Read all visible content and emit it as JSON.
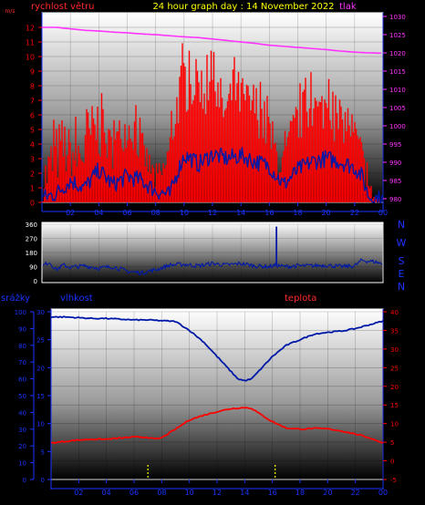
{
  "header": {
    "left_label": "rychlost větru",
    "left_unit": "m/s",
    "title": "24 hour graph day : 14 November 2022",
    "right_label": "tlak"
  },
  "colors": {
    "wind": "#ff0000",
    "gust": "#0018a8",
    "pressure": "#ff33ff",
    "direction": "#0018a8",
    "humidity": "#0018a8",
    "temperature": "#ff0000",
    "rain_label": "#1a33ff",
    "temp_label": "#ff0000",
    "tick_blue": "#1a33ff",
    "title": "#ffff00"
  },
  "chart_data": [
    {
      "type": "line",
      "panel": "wind-pressure",
      "x_ticks": [
        "02",
        "04",
        "06",
        "08",
        "10",
        "12",
        "14",
        "16",
        "18",
        "20",
        "22",
        "00"
      ],
      "xlim": [
        0,
        24
      ],
      "y_left": {
        "label": "rychlost větru",
        "ticks": [
          "0",
          "1",
          "2",
          "3",
          "4",
          "5",
          "6",
          "7",
          "8",
          "9",
          "10",
          "11",
          "12"
        ],
        "ylim": [
          0,
          13
        ]
      },
      "y_right": {
        "label": "tlak",
        "ticks": [
          "980",
          "985",
          "990",
          "995",
          "1000",
          "1005",
          "1010",
          "1015",
          "1020",
          "1025",
          "1030"
        ],
        "ylim": [
          979,
          1031
        ]
      },
      "series": [
        {
          "name": "rychlost větru",
          "axis": "left",
          "style": "noisy-bars",
          "x": [
            0,
            0.5,
            1,
            1.5,
            2,
            2.5,
            3,
            3.5,
            4,
            4.5,
            5,
            5.5,
            6,
            6.5,
            7,
            7.5,
            8,
            8.5,
            9,
            9.5,
            10,
            10.5,
            11,
            11.5,
            12,
            12.5,
            13,
            13.5,
            14,
            14.5,
            15,
            15.5,
            16,
            16.5,
            17,
            17.5,
            18,
            18.5,
            19,
            19.5,
            20,
            20.5,
            21,
            21.5,
            22,
            22.5,
            23,
            23.5,
            24
          ],
          "mean": [
            1.2,
            2,
            3,
            3.5,
            3.2,
            2.8,
            3.5,
            4.5,
            5,
            4,
            3.5,
            4.5,
            5,
            4.8,
            3.5,
            2.5,
            1.5,
            1.8,
            3.5,
            6.5,
            8.2,
            7.5,
            8.5,
            7,
            8.5,
            6.5,
            6,
            7.5,
            7,
            6.5,
            6.5,
            5.5,
            4.5,
            3,
            2.5,
            4,
            5.5,
            6,
            6.5,
            6,
            6.5,
            5.5,
            5,
            5.5,
            4.5,
            3,
            0.8,
            0.2,
            0.1
          ],
          "max": [
            3,
            5,
            6,
            7,
            5.5,
            6,
            8,
            7.5,
            8.5,
            6,
            5.5,
            6.5,
            7,
            7,
            5.5,
            4,
            3,
            3.5,
            5.5,
            9,
            11.5,
            10,
            10.5,
            10,
            10.5,
            9.5,
            8.5,
            10,
            9.5,
            9,
            9,
            8,
            7,
            5.5,
            4.5,
            6.5,
            8,
            8.5,
            9,
            8,
            9,
            7.5,
            7,
            7.5,
            6.5,
            5,
            2,
            0.5,
            0.3
          ]
        },
        {
          "name": "gust",
          "axis": "left",
          "x": [
            0,
            1,
            2,
            3,
            4,
            5,
            6,
            7,
            8,
            9,
            9.5,
            10,
            10.5,
            11,
            12,
            13,
            14,
            15,
            16,
            17,
            18,
            19,
            20,
            21,
            22,
            22.5,
            23,
            24
          ],
          "y": [
            0.3,
            0.6,
            1.5,
            1,
            2.2,
            1.2,
            1.8,
            1.5,
            0.8,
            0.5,
            2,
            3.2,
            3,
            2.6,
            3.3,
            3,
            3.2,
            2.8,
            2.5,
            1.2,
            2.2,
            2.8,
            3,
            2.8,
            2.4,
            1.8,
            0.4,
            0.2
          ]
        },
        {
          "name": "tlak",
          "axis": "right",
          "x": [
            0,
            1,
            2,
            3,
            4,
            5,
            6,
            7,
            8,
            9,
            10,
            11,
            12,
            13,
            14,
            15,
            16,
            17,
            18,
            19,
            20,
            21,
            22,
            23,
            24
          ],
          "y": [
            1027,
            1027,
            1026.6,
            1026.2,
            1026,
            1025.7,
            1025.5,
            1025.2,
            1025,
            1024.7,
            1024.4,
            1024.2,
            1023.8,
            1023.4,
            1023,
            1022.6,
            1022.1,
            1021.8,
            1021.5,
            1021.2,
            1020.9,
            1020.5,
            1020.2,
            1020,
            1019.9
          ]
        }
      ]
    },
    {
      "type": "line",
      "panel": "wind-direction",
      "ylim": [
        0,
        360
      ],
      "y_ticks": [
        "0",
        "90",
        "180",
        "270",
        "360"
      ],
      "compass": [
        "N",
        "W",
        "S",
        "E",
        "N"
      ],
      "series": [
        {
          "name": "direction",
          "x": [
            0,
            0.5,
            1,
            1.5,
            2,
            3,
            4,
            5,
            6,
            7,
            8,
            9,
            10,
            11,
            12,
            13,
            14,
            15,
            16,
            16.5,
            17,
            18,
            19,
            20,
            21,
            22,
            22.5,
            23,
            23.5,
            24
          ],
          "y": [
            90,
            120,
            70,
            100,
            85,
            95,
            80,
            90,
            60,
            50,
            70,
            100,
            105,
            95,
            110,
            100,
            110,
            95,
            90,
            100,
            90,
            95,
            95,
            100,
            90,
            95,
            130,
            125,
            120,
            105
          ]
        }
      ],
      "spikes": [
        {
          "x": 16.5,
          "y": 345
        }
      ]
    },
    {
      "type": "line",
      "panel": "humidity-temperature-rain",
      "x_ticks": [
        "02",
        "04",
        "06",
        "08",
        "10",
        "12",
        "14",
        "16",
        "18",
        "20",
        "22",
        "00"
      ],
      "xlim": [
        0,
        24
      ],
      "labels": {
        "rain": "srážky",
        "humidity": "vlhkost",
        "temperature": "teplota"
      },
      "rain_ticks": [
        "0",
        "10",
        "20",
        "30",
        "40",
        "50",
        "60",
        "70",
        "80",
        "90",
        "100"
      ],
      "humidity_ticks": [
        "0",
        "5",
        "10",
        "15",
        "20",
        "25",
        "30"
      ],
      "temp_ticks": [
        "-5",
        "0",
        "5",
        "10",
        "15",
        "20",
        "25",
        "30",
        "35",
        "40"
      ],
      "temp_ylim": [
        -5,
        40
      ],
      "series": [
        {
          "name": "vlhkost",
          "axis": "temperature-scale",
          "x": [
            0,
            1,
            2,
            3,
            4,
            5,
            6,
            7,
            8,
            9,
            10,
            11,
            12,
            13,
            13.5,
            14,
            14.5,
            15,
            16,
            17,
            18,
            19,
            20,
            21,
            22,
            23,
            24
          ],
          "y": [
            38.6,
            38.6,
            38.4,
            38.2,
            38.2,
            38,
            37.8,
            37.8,
            37.6,
            37.4,
            35,
            32,
            28,
            24,
            22,
            21.5,
            22,
            24,
            28,
            31,
            32.5,
            34,
            34.5,
            34.8,
            35.5,
            36.5,
            37.5
          ]
        },
        {
          "name": "teplota",
          "axis": "temperature-scale",
          "x": [
            0,
            1,
            2,
            3,
            4,
            5,
            6,
            7,
            7.5,
            8,
            9,
            10,
            11,
            12,
            13,
            14,
            14.5,
            15,
            16,
            17,
            18,
            19,
            20,
            21,
            22,
            23,
            24
          ],
          "y": [
            4.8,
            5.2,
            5.6,
            5.8,
            5.8,
            6.1,
            6.4,
            6.3,
            5.8,
            6.2,
            8.5,
            11,
            12.2,
            13.2,
            14,
            14.3,
            14.1,
            12.8,
            10.5,
            8.8,
            8.5,
            8.7,
            8.6,
            8,
            7.2,
            6.2,
            4.8
          ]
        },
        {
          "name": "srážky",
          "axis": "rain",
          "style": "markers",
          "x": [
            7,
            16.2
          ],
          "y": [
            0,
            0
          ]
        }
      ]
    }
  ]
}
